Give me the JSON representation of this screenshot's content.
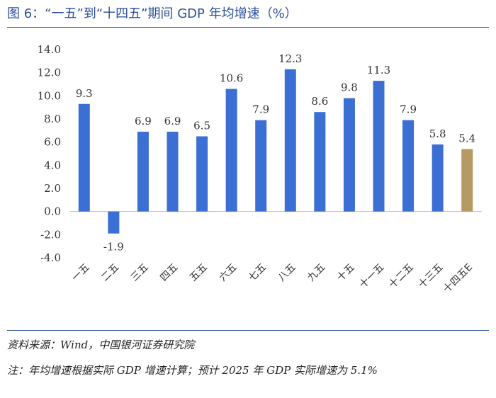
{
  "header": {
    "title": "图 6：“一五”到“十四五”期间 GDP 年均增速（%）"
  },
  "footer": {
    "source": "资料来源：Wind，中国银河证券研究院",
    "note": "注：年均增速根据实际 GDP 增速计算；预计 2025 年 GDP 实际增速为 5.1%"
  },
  "chart_data": {
    "type": "bar",
    "title": "“一五”到“十四五”期间 GDP 年均增速（%）",
    "categories": [
      "一五",
      "二五",
      "三五",
      "四五",
      "五五",
      "六五",
      "七五",
      "八五",
      "九五",
      "十五",
      "十一五",
      "十二五",
      "十三五",
      "十四五E"
    ],
    "values": [
      9.3,
      -1.9,
      6.9,
      6.9,
      6.5,
      10.6,
      7.9,
      12.3,
      8.6,
      9.8,
      11.3,
      7.9,
      5.8,
      5.4
    ],
    "value_labels": [
      "9.3",
      "-1.9",
      "6.9",
      "6.9",
      "6.5",
      "10.6",
      "7.9",
      "12.3",
      "8.6",
      "9.8",
      "11.3",
      "7.9",
      "5.8",
      "5.4"
    ],
    "ylim": [
      -4.0,
      14.0
    ],
    "yticks": [
      "-4.0",
      "-2.0",
      "0.0",
      "2.0",
      "4.0",
      "6.0",
      "8.0",
      "10.0",
      "12.0",
      "14.0"
    ],
    "xlabel": "",
    "ylabel": "",
    "grid": false,
    "legend": "none",
    "colors": {
      "actual": "#3b6fd4",
      "estimate": "#b79a63",
      "axis": "#bfbfbf"
    },
    "estimate_index": 13
  }
}
